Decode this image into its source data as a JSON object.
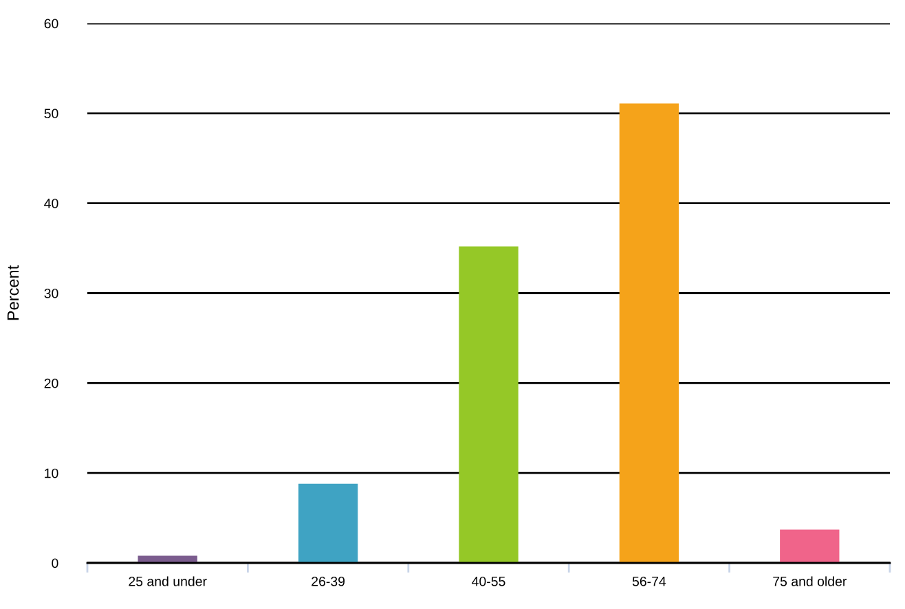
{
  "chart_data": {
    "type": "bar",
    "ylabel": "Percent",
    "categories": [
      "25 and under",
      "26-39",
      "40-55",
      "56-74",
      "75 and older"
    ],
    "values": [
      0.8,
      8.8,
      35.2,
      51.1,
      3.7
    ],
    "colors": [
      "#7b5c8e",
      "#3fa3c3",
      "#95c827",
      "#f5a31a",
      "#f0648a"
    ],
    "ylim": [
      0,
      60
    ],
    "yticks": [
      0,
      10,
      20,
      30,
      40,
      50,
      60
    ],
    "grid": "y",
    "legend": false
  }
}
